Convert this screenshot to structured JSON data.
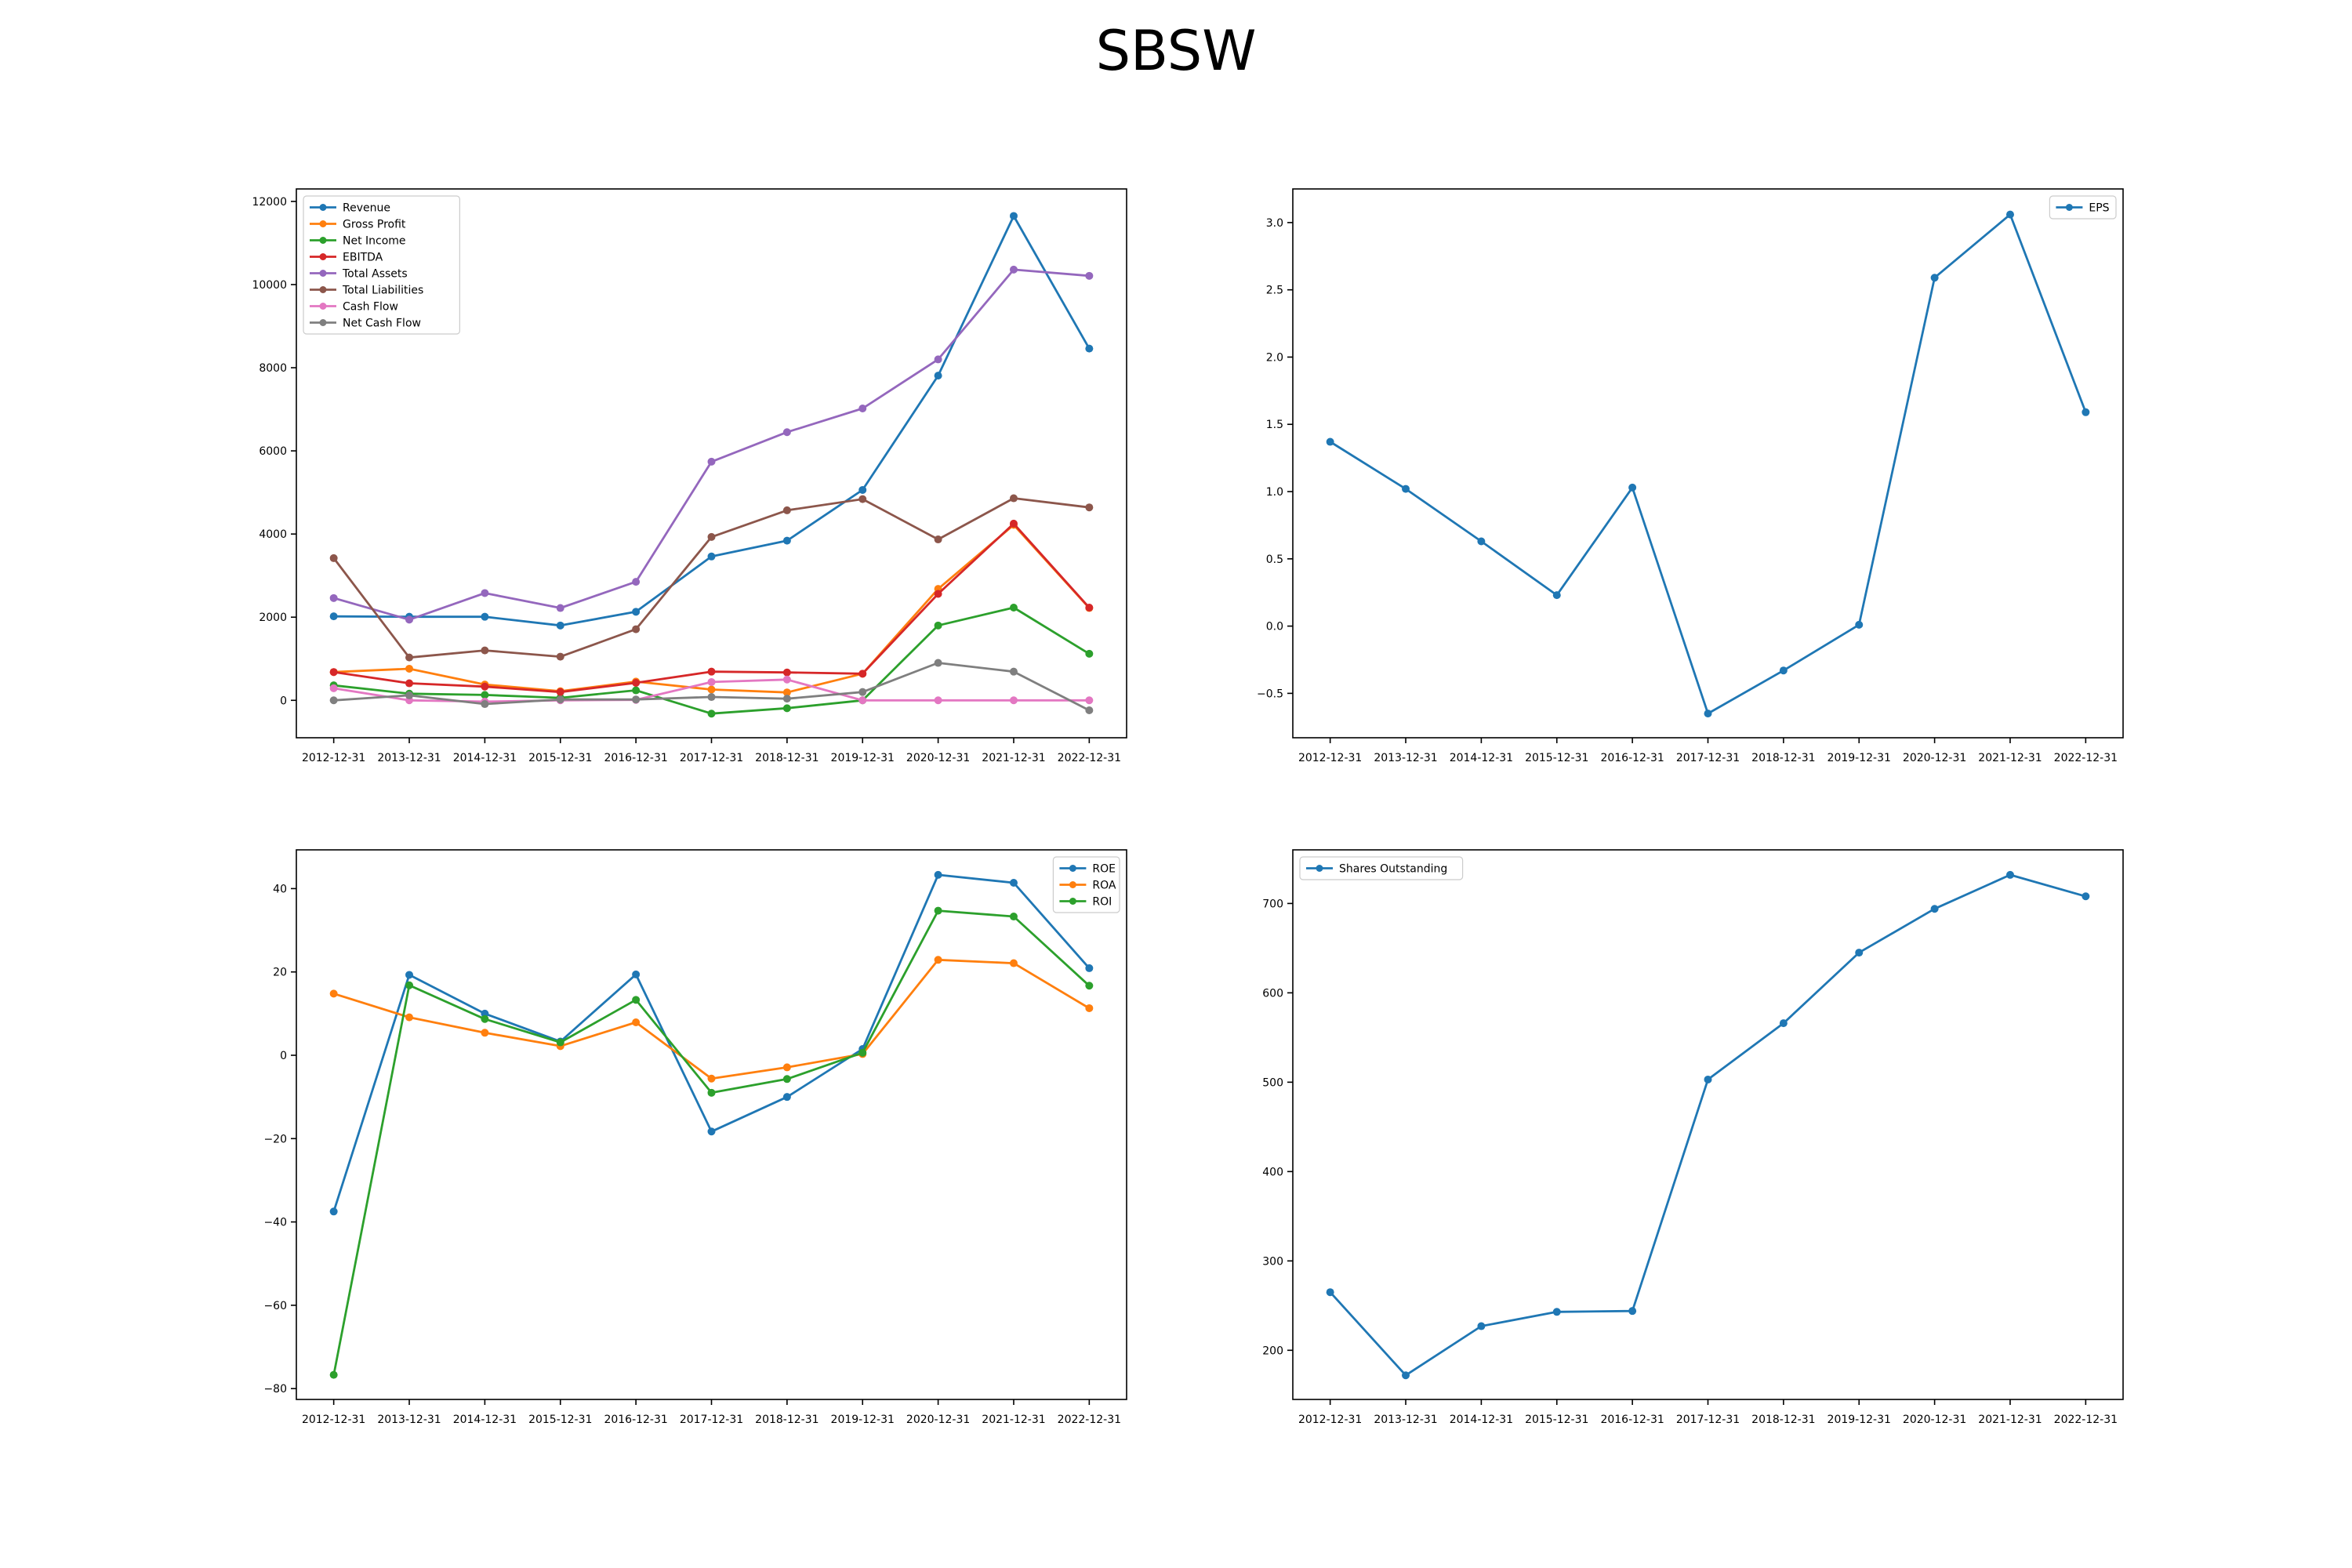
{
  "figure": {
    "title": "SBSW"
  },
  "chart_data": [
    {
      "type": "line",
      "categories": [
        "2012-12-31",
        "2013-12-31",
        "2014-12-31",
        "2015-12-31",
        "2016-12-31",
        "2017-12-31",
        "2018-12-31",
        "2019-12-31",
        "2020-12-31",
        "2021-12-31",
        "2022-12-31"
      ],
      "ylim": [
        -900,
        12300
      ],
      "yticks": [
        0,
        2000,
        4000,
        6000,
        8000,
        10000,
        12000
      ],
      "legend": "upper left",
      "grid": false,
      "series": [
        {
          "name": "Revenue",
          "color": "#1f77b4",
          "values": [
            2020,
            2010,
            2010,
            1800,
            2130,
            3460,
            3840,
            5060,
            7810,
            11650,
            8460
          ]
        },
        {
          "name": "Gross Profit",
          "color": "#ff7f0e",
          "values": [
            680,
            760,
            380,
            220,
            450,
            260,
            190,
            640,
            2680,
            4220,
            2220
          ]
        },
        {
          "name": "Net Income",
          "color": "#2ca02c",
          "values": [
            360,
            160,
            130,
            60,
            240,
            -320,
            -190,
            0,
            1800,
            2230,
            1120
          ]
        },
        {
          "name": "EBITDA",
          "color": "#d62728",
          "values": [
            680,
            410,
            330,
            200,
            420,
            690,
            670,
            640,
            2560,
            4250,
            2230
          ]
        },
        {
          "name": "Total Assets",
          "color": "#9467bd",
          "values": [
            2460,
            1940,
            2580,
            2220,
            2850,
            5740,
            6450,
            7020,
            8200,
            10360,
            10210
          ]
        },
        {
          "name": "Total Liabilities",
          "color": "#8c564b",
          "values": [
            3420,
            1030,
            1200,
            1050,
            1710,
            3930,
            4570,
            4840,
            3870,
            4860,
            4640
          ]
        },
        {
          "name": "Cash Flow",
          "color": "#e377c2",
          "values": [
            290,
            0,
            -30,
            0,
            10,
            440,
            500,
            0,
            0,
            0,
            0
          ]
        },
        {
          "name": "Net Cash Flow",
          "color": "#7f7f7f",
          "values": [
            0,
            120,
            -90,
            20,
            20,
            80,
            40,
            200,
            900,
            690,
            -240
          ]
        }
      ]
    },
    {
      "type": "line",
      "categories": [
        "2012-12-31",
        "2013-12-31",
        "2014-12-31",
        "2015-12-31",
        "2016-12-31",
        "2017-12-31",
        "2018-12-31",
        "2019-12-31",
        "2020-12-31",
        "2021-12-31",
        "2022-12-31"
      ],
      "ylim": [
        -0.83,
        3.25
      ],
      "yticks": [
        -0.5,
        0.0,
        0.5,
        1.0,
        1.5,
        2.0,
        2.5,
        3.0
      ],
      "legend": "upper right",
      "grid": false,
      "series": [
        {
          "name": "EPS",
          "color": "#1f77b4",
          "values": [
            1.37,
            1.02,
            0.63,
            0.23,
            1.03,
            -0.65,
            -0.33,
            0.01,
            2.59,
            3.06,
            1.59
          ]
        }
      ]
    },
    {
      "type": "line",
      "categories": [
        "2012-12-31",
        "2013-12-31",
        "2014-12-31",
        "2015-12-31",
        "2016-12-31",
        "2017-12-31",
        "2018-12-31",
        "2019-12-31",
        "2020-12-31",
        "2021-12-31",
        "2022-12-31"
      ],
      "ylim": [
        -82.6,
        49.3
      ],
      "yticks": [
        -80,
        -60,
        -40,
        -20,
        0,
        20,
        40
      ],
      "legend": "upper right",
      "grid": false,
      "series": [
        {
          "name": "ROE",
          "color": "#1f77b4",
          "values": [
            -37.5,
            19.3,
            10.0,
            3.3,
            19.4,
            -18.3,
            -10.0,
            1.5,
            43.3,
            41.4,
            20.9
          ]
        },
        {
          "name": "ROA",
          "color": "#ff7f0e",
          "values": [
            14.8,
            9.1,
            5.4,
            2.2,
            7.9,
            -5.6,
            -2.9,
            0.3,
            22.9,
            22.1,
            11.3
          ]
        },
        {
          "name": "ROI",
          "color": "#2ca02c",
          "values": [
            -76.7,
            16.8,
            8.7,
            3.1,
            13.3,
            -9.0,
            -5.7,
            0.6,
            34.7,
            33.3,
            16.7
          ]
        }
      ]
    },
    {
      "type": "line",
      "categories": [
        "2012-12-31",
        "2013-12-31",
        "2014-12-31",
        "2015-12-31",
        "2016-12-31",
        "2017-12-31",
        "2018-12-31",
        "2019-12-31",
        "2020-12-31",
        "2021-12-31",
        "2022-12-31"
      ],
      "ylim": [
        145,
        760
      ],
      "yticks": [
        200,
        300,
        400,
        500,
        600,
        700
      ],
      "legend": "upper left",
      "grid": false,
      "series": [
        {
          "name": "Shares Outstanding",
          "color": "#1f77b4",
          "values": [
            265,
            172,
            227,
            243,
            244,
            503,
            566,
            645,
            694,
            732,
            708
          ]
        }
      ]
    }
  ]
}
